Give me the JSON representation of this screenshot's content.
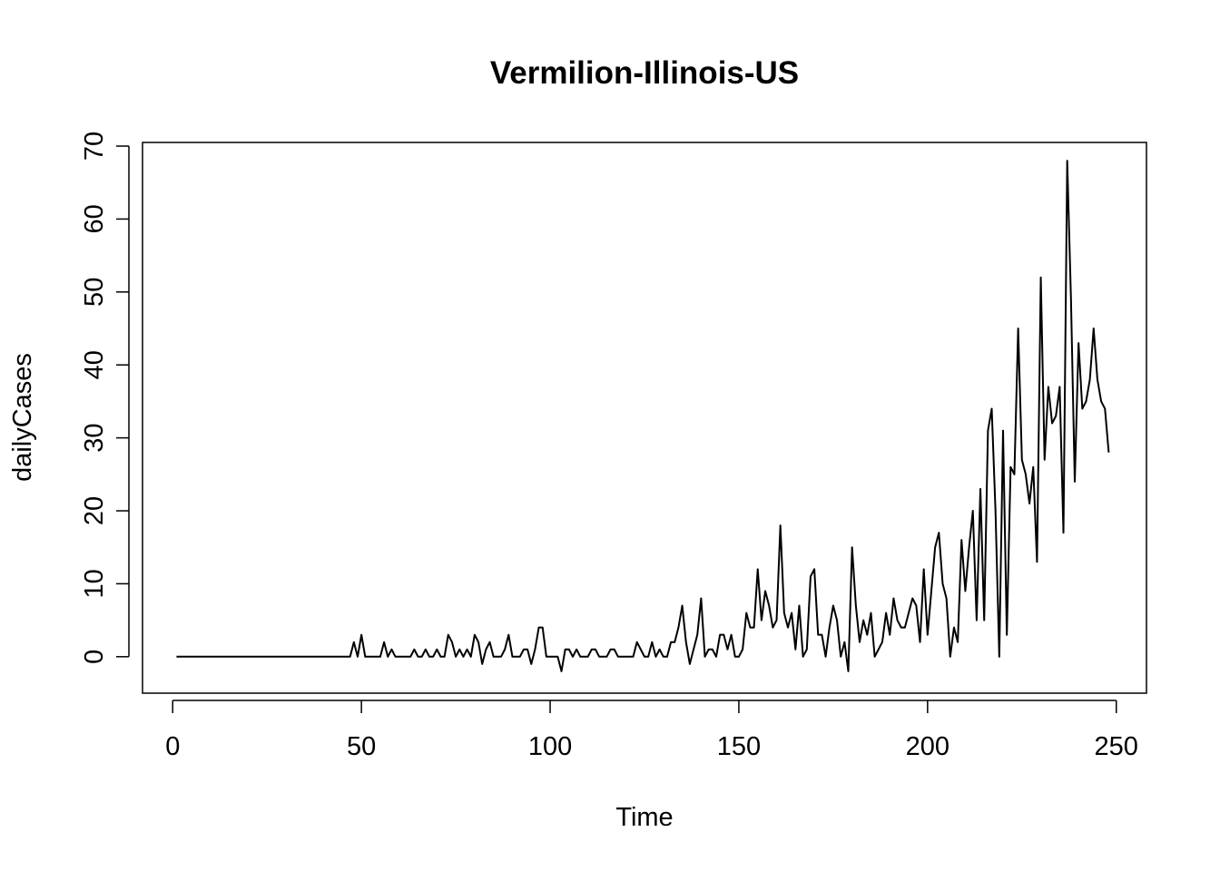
{
  "chart_data": {
    "type": "line",
    "title": "Vermilion-Illinois-US",
    "xlabel": "Time",
    "ylabel": "dailyCases",
    "xlim": [
      -8,
      258
    ],
    "ylim": [
      -5,
      70.5
    ],
    "x_ticks": [
      0,
      50,
      100,
      150,
      200,
      250
    ],
    "y_ticks": [
      0,
      10,
      20,
      30,
      40,
      50,
      60,
      70
    ],
    "grid": false,
    "legend": "none",
    "line_color": "#000000",
    "series": [
      {
        "x_start": 1,
        "values": [
          0,
          0,
          0,
          0,
          0,
          0,
          0,
          0,
          0,
          0,
          0,
          0,
          0,
          0,
          0,
          0,
          0,
          0,
          0,
          0,
          0,
          0,
          0,
          0,
          0,
          0,
          0,
          0,
          0,
          0,
          0,
          0,
          0,
          0,
          0,
          0,
          0,
          0,
          0,
          0,
          0,
          0,
          0,
          0,
          0,
          0,
          0,
          2,
          0,
          3,
          0,
          0,
          0,
          0,
          0,
          2,
          0,
          1,
          0,
          0,
          0,
          0,
          0,
          1,
          0,
          0,
          1,
          0,
          0,
          1,
          0,
          0,
          3,
          2,
          0,
          1,
          0,
          1,
          0,
          3,
          2,
          -1,
          1,
          2,
          0,
          0,
          0,
          1,
          3,
          0,
          0,
          0,
          1,
          1,
          -1,
          1,
          4,
          4,
          0,
          0,
          0,
          0,
          -2,
          1,
          1,
          0,
          1,
          0,
          0,
          0,
          1,
          1,
          0,
          0,
          0,
          1,
          1,
          0,
          0,
          0,
          0,
          0,
          2,
          1,
          0,
          0,
          2,
          0,
          1,
          0,
          0,
          2,
          2,
          4,
          7,
          2,
          -1,
          1,
          3,
          8,
          0,
          1,
          1,
          0,
          3,
          3,
          1,
          3,
          0,
          0,
          1,
          6,
          4,
          4,
          12,
          5,
          9,
          7,
          4,
          5,
          18,
          6,
          4,
          6,
          1,
          7,
          0,
          1,
          11,
          12,
          3,
          3,
          0,
          4,
          7,
          5,
          0,
          2,
          -2,
          15,
          7,
          2,
          5,
          3,
          6,
          0,
          1,
          2,
          6,
          3,
          8,
          5,
          4,
          4,
          6,
          8,
          7,
          2,
          12,
          3,
          9,
          15,
          17,
          10,
          8,
          0,
          4,
          2,
          16,
          9,
          15,
          20,
          5,
          23,
          5,
          31,
          34,
          20,
          0,
          31,
          3,
          26,
          25,
          45,
          27,
          25,
          21,
          26,
          13,
          52,
          27,
          37,
          32,
          33,
          37,
          17,
          68,
          49,
          24,
          43,
          34,
          35,
          38,
          45,
          38,
          35,
          34,
          28
        ]
      }
    ]
  }
}
